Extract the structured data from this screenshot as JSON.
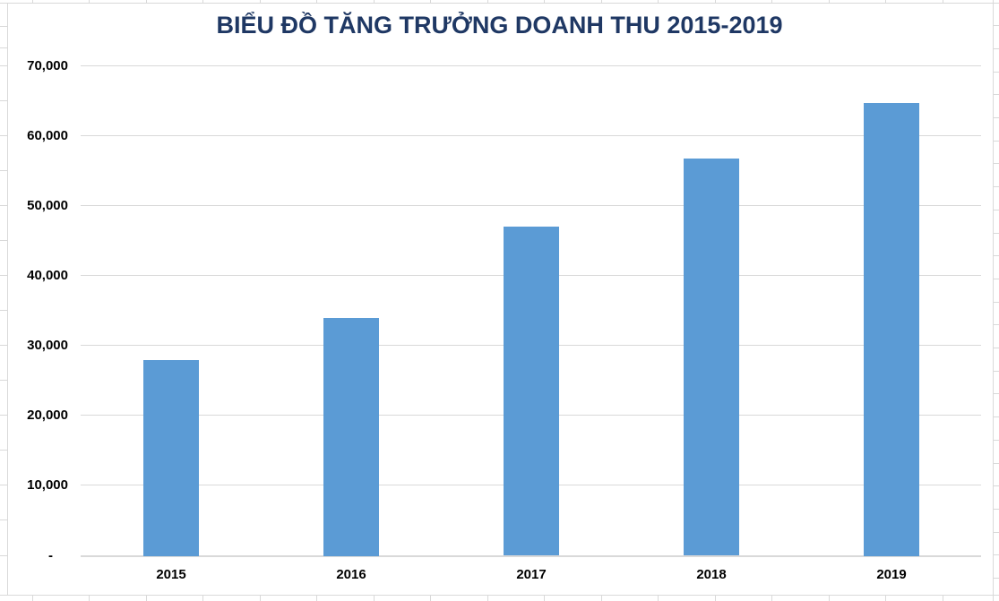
{
  "chart_data": {
    "type": "bar",
    "title": "BIỂU ĐỒ TĂNG TRƯỞNG DOANH THU 2015-2019",
    "categories": [
      "2015",
      "2016",
      "2017",
      "2018",
      "2019"
    ],
    "values": [
      27900,
      33900,
      46900,
      56600,
      64600
    ],
    "xlabel": "",
    "ylabel": "",
    "ylim": [
      0,
      70000
    ],
    "ytick_step": 10000,
    "ytick_labels": [
      "-",
      "10,000",
      "20,000",
      "30,000",
      "40,000",
      "50,000",
      "60,000",
      "70,000"
    ],
    "grid": true,
    "legend": false,
    "legend_position": "none",
    "data_labels": false,
    "colors": {
      "bar": "#5B9BD5",
      "title": "#1F3864",
      "gridline": "#D9D9D9",
      "tick_label": "#000000",
      "background": "#FFFFFF"
    }
  }
}
